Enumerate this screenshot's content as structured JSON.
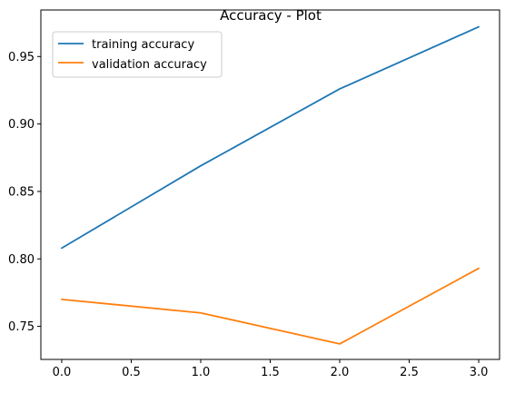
{
  "chart_data": {
    "type": "line",
    "title": "Accuracy - Plot",
    "xlabel": "",
    "ylabel": "",
    "xlim": [
      -0.15,
      3.15
    ],
    "ylim": [
      0.7255,
      0.9845
    ],
    "x_ticks": [
      0.0,
      0.5,
      1.0,
      1.5,
      2.0,
      2.5,
      3.0
    ],
    "x_tick_labels": [
      "0.0",
      "0.5",
      "1.0",
      "1.5",
      "2.0",
      "2.5",
      "3.0"
    ],
    "y_ticks": [
      0.75,
      0.8,
      0.85,
      0.9,
      0.95
    ],
    "y_tick_labels": [
      "0.75",
      "0.80",
      "0.85",
      "0.90",
      "0.95"
    ],
    "grid": false,
    "legend_position": "upper-left",
    "x": [
      0,
      1,
      2,
      3
    ],
    "series": [
      {
        "name": "training accuracy",
        "color": "#1f77b4",
        "values": [
          0.808,
          0.869,
          0.926,
          0.972
        ]
      },
      {
        "name": "validation accuracy",
        "color": "#ff7f0e",
        "values": [
          0.77,
          0.76,
          0.737,
          0.793
        ]
      }
    ]
  }
}
